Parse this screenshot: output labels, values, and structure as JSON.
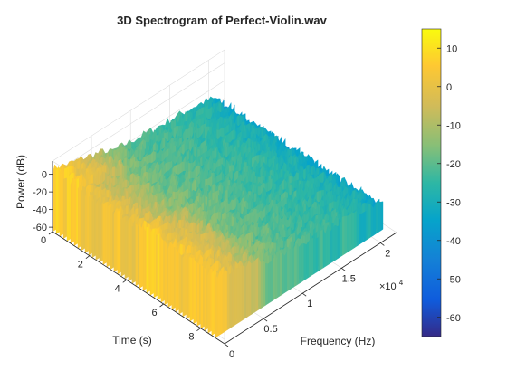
{
  "chart_data": {
    "type": "surface",
    "title": "3D Spectrogram of Perfect-Violin.wav",
    "xlabel": "Frequency (Hz)",
    "ylabel": "Time (s)",
    "zlabel": "Power (dB)",
    "x_exponent_label": "×10",
    "x_exponent_power": "4",
    "xlim": [
      0,
      22050
    ],
    "ylim": [
      0,
      9.3
    ],
    "zlim": [
      -65,
      15
    ],
    "x_ticks": [
      {
        "value": 0,
        "label": "0"
      },
      {
        "value": 5000,
        "label": "0.5"
      },
      {
        "value": 10000,
        "label": "1"
      },
      {
        "value": 15000,
        "label": "1.5"
      },
      {
        "value": 20000,
        "label": "2"
      }
    ],
    "y_ticks": [
      {
        "value": 0,
        "label": "0"
      },
      {
        "value": 2,
        "label": "2"
      },
      {
        "value": 4,
        "label": "4"
      },
      {
        "value": 6,
        "label": "6"
      },
      {
        "value": 8,
        "label": "8"
      }
    ],
    "z_ticks": [
      {
        "value": 0,
        "label": "0"
      },
      {
        "value": -20,
        "label": "-20"
      },
      {
        "value": -40,
        "label": "-40"
      },
      {
        "value": -60,
        "label": "-60"
      }
    ],
    "colorbar": {
      "colormap": "parula",
      "range": [
        -65,
        15
      ],
      "ticks": [
        {
          "value": 10,
          "label": "10"
        },
        {
          "value": 0,
          "label": "0"
        },
        {
          "value": -10,
          "label": "-10"
        },
        {
          "value": -20,
          "label": "-20"
        },
        {
          "value": -30,
          "label": "-30"
        },
        {
          "value": -40,
          "label": "-40"
        },
        {
          "value": -50,
          "label": "-50"
        },
        {
          "value": -60,
          "label": "-60"
        }
      ]
    },
    "colors": [
      "#352a87",
      "#0f5cdd",
      "#1481d6",
      "#06a4ca",
      "#2eb7a4",
      "#87bf77",
      "#d1bb59",
      "#fec832",
      "#f9fb0e"
    ],
    "surface_profile": {
      "freq_hz": [
        0,
        1000,
        2000,
        4000,
        6000,
        8000,
        10000,
        12000,
        14000,
        16000,
        18000,
        20000,
        22050
      ],
      "power_db": [
        2,
        0,
        -4,
        -8,
        -14,
        -18,
        -20,
        -22,
        -24,
        -25,
        -27,
        -30,
        -40
      ]
    },
    "grid": true,
    "view": "3d-perspective"
  }
}
